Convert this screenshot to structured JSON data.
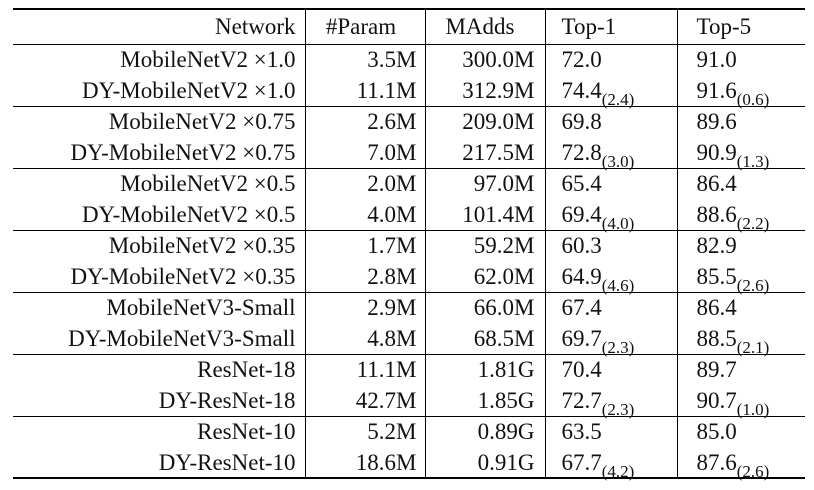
{
  "headers": {
    "network": "Network",
    "param": "#Param",
    "madds": "MAdds",
    "top1": "Top-1",
    "top5": "Top-5"
  },
  "groups": [
    {
      "rows": [
        {
          "network": "MobileNetV2 ×1.0",
          "param": "3.5M",
          "madds": "300.0M",
          "top1": "72.0",
          "top1_gain": "",
          "top5": "91.0",
          "top5_gain": ""
        },
        {
          "network": "DY-MobileNetV2 ×1.0",
          "param": "11.1M",
          "madds": "312.9M",
          "top1": "74.4",
          "top1_gain": "(2.4)",
          "top5": "91.6",
          "top5_gain": "(0.6)"
        }
      ]
    },
    {
      "rows": [
        {
          "network": "MobileNetV2 ×0.75",
          "param": "2.6M",
          "madds": "209.0M",
          "top1": "69.8",
          "top1_gain": "",
          "top5": "89.6",
          "top5_gain": ""
        },
        {
          "network": "DY-MobileNetV2 ×0.75",
          "param": "7.0M",
          "madds": "217.5M",
          "top1": "72.8",
          "top1_gain": "(3.0)",
          "top5": "90.9",
          "top5_gain": "(1.3)"
        }
      ]
    },
    {
      "rows": [
        {
          "network": "MobileNetV2 ×0.5",
          "param": "2.0M",
          "madds": "97.0M",
          "top1": "65.4",
          "top1_gain": "",
          "top5": "86.4",
          "top5_gain": ""
        },
        {
          "network": "DY-MobileNetV2 ×0.5",
          "param": "4.0M",
          "madds": "101.4M",
          "top1": "69.4",
          "top1_gain": "(4.0)",
          "top5": "88.6",
          "top5_gain": "(2.2)"
        }
      ]
    },
    {
      "rows": [
        {
          "network": "MobileNetV2 ×0.35",
          "param": "1.7M",
          "madds": "59.2M",
          "top1": "60.3",
          "top1_gain": "",
          "top5": "82.9",
          "top5_gain": ""
        },
        {
          "network": "DY-MobileNetV2 ×0.35",
          "param": "2.8M",
          "madds": "62.0M",
          "top1": "64.9",
          "top1_gain": "(4.6)",
          "top5": "85.5",
          "top5_gain": "(2.6)"
        }
      ]
    },
    {
      "rows": [
        {
          "network": "MobileNetV3-Small",
          "param": "2.9M",
          "madds": "66.0M",
          "top1": "67.4",
          "top1_gain": "",
          "top5": "86.4",
          "top5_gain": ""
        },
        {
          "network": "DY-MobileNetV3-Small",
          "param": "4.8M",
          "madds": "68.5M",
          "top1": "69.7",
          "top1_gain": "(2.3)",
          "top5": "88.5",
          "top5_gain": "(2.1)"
        }
      ]
    },
    {
      "rows": [
        {
          "network": "ResNet-18",
          "param": "11.1M",
          "madds": "1.81G",
          "top1": "70.4",
          "top1_gain": "",
          "top5": "89.7",
          "top5_gain": ""
        },
        {
          "network": "DY-ResNet-18",
          "param": "42.7M",
          "madds": "1.85G",
          "top1": "72.7",
          "top1_gain": "(2.3)",
          "top5": "90.7",
          "top5_gain": "(1.0)"
        }
      ]
    },
    {
      "rows": [
        {
          "network": "ResNet-10",
          "param": "5.2M",
          "madds": "0.89G",
          "top1": "63.5",
          "top1_gain": "",
          "top5": "85.0",
          "top5_gain": ""
        },
        {
          "network": "DY-ResNet-10",
          "param": "18.6M",
          "madds": "0.91G",
          "top1": "67.7",
          "top1_gain": "(4.2)",
          "top5": "87.6",
          "top5_gain": "(2.6)"
        }
      ]
    }
  ]
}
